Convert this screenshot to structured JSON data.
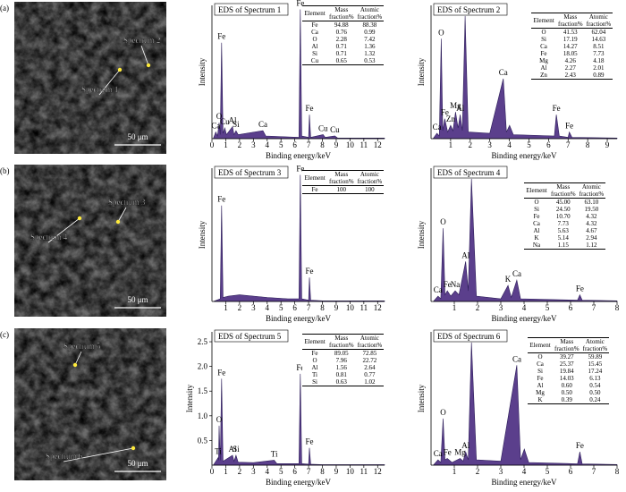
{
  "images": [
    {
      "label": "(a)",
      "markers": [
        "Spectrum 2",
        "Spectrum 1"
      ],
      "scale": "50 μm"
    },
    {
      "label": "(b)",
      "markers": [
        "Spectrum 3",
        "Spectrum 4"
      ],
      "scale": "50 μm"
    },
    {
      "label": "(c)",
      "markers": [
        "Spectrum 5",
        "Spectrum 6"
      ],
      "scale": "50 μm"
    }
  ],
  "chart_data": [
    {
      "type": "line",
      "title": "EDS of Spectrum 1",
      "x_label": "Binding energy/keV",
      "y_label": "Intensity",
      "color": "#5b3f8c",
      "xlim": [
        0,
        12.5
      ],
      "xticks": [
        0,
        1,
        2,
        3,
        4,
        5,
        6,
        7,
        8,
        9,
        10,
        11,
        12
      ],
      "ylim": [
        0,
        100
      ],
      "x": [
        0.1,
        0.28,
        0.4,
        0.52,
        0.6,
        0.7,
        0.8,
        0.93,
        1.05,
        1.49,
        1.6,
        1.74,
        1.9,
        2.5,
        3.69,
        3.9,
        6.3,
        6.4,
        6.5,
        7.0,
        7.06,
        7.15,
        8.05,
        8.2,
        8.9,
        9.1,
        12.5
      ],
      "values": [
        0,
        5,
        2,
        12,
        3,
        72,
        4,
        8,
        3,
        9,
        3,
        6,
        3,
        4,
        6,
        2,
        1,
        97,
        2,
        1,
        18,
        1,
        3,
        1,
        2,
        0.5,
        0.5
      ],
      "peak_labels": [
        null,
        "Ca",
        null,
        "O",
        null,
        "Fe",
        null,
        "Cu",
        null,
        "Al",
        null,
        "Si",
        null,
        null,
        "Ca",
        null,
        null,
        "Fe",
        null,
        null,
        "Fe",
        null,
        "Cu",
        null,
        "Cu",
        null,
        null
      ],
      "table": {
        "columns": [
          "Element",
          "Mass fraction%",
          "Atomic fraction%"
        ],
        "rows": [
          [
            "Fe",
            "94.88",
            "88.38"
          ],
          [
            "Ca",
            "0.76",
            "0.99"
          ],
          [
            "O",
            "2.28",
            "7.42"
          ],
          [
            "Al",
            "0.71",
            "1.36"
          ],
          [
            "Si",
            "0.71",
            "1.32"
          ],
          [
            "Cu",
            "0.65",
            "0.53"
          ]
        ]
      }
    },
    {
      "type": "line",
      "title": "EDS of Spectrum 2",
      "x_label": "Binding energy/keV",
      "y_label": "Intensity",
      "color": "#5b3f8c",
      "xlim": [
        0,
        9.5
      ],
      "xticks": [
        1,
        2,
        3,
        4,
        5,
        6,
        7,
        8,
        9
      ],
      "ylim": [
        0,
        100
      ],
      "x": [
        0.1,
        0.3,
        0.42,
        0.52,
        0.6,
        0.7,
        0.85,
        1.0,
        1.12,
        1.25,
        1.38,
        1.49,
        1.6,
        1.74,
        1.9,
        3.0,
        3.69,
        3.85,
        4.01,
        4.2,
        6.3,
        6.4,
        6.55,
        7.0,
        7.06,
        7.2,
        9.5
      ],
      "values": [
        0,
        4,
        2,
        75,
        6,
        15,
        5,
        10,
        6,
        20,
        8,
        18,
        6,
        92,
        5,
        4,
        45,
        5,
        10,
        3,
        2,
        18,
        2,
        1,
        5,
        1,
        0.5
      ],
      "peak_labels": [
        null,
        "Ca",
        null,
        "O",
        null,
        "Fe",
        null,
        "Zn",
        null,
        "Mg",
        null,
        "Al",
        null,
        "Si",
        null,
        null,
        "Ca",
        null,
        null,
        null,
        null,
        "Fe",
        null,
        null,
        "Fe",
        null,
        null
      ],
      "table": {
        "columns": [
          "Element",
          "Mass fraction%",
          "Atomic fraction%"
        ],
        "rows": [
          [
            "O",
            "41.53",
            "62.04"
          ],
          [
            "Si",
            "17.19",
            "14.63"
          ],
          [
            "Ca",
            "14.27",
            "8.51"
          ],
          [
            "Fe",
            "18.05",
            "7.73"
          ],
          [
            "Mg",
            "4.26",
            "4.18"
          ],
          [
            "Al",
            "2.27",
            "2.01"
          ],
          [
            "Zn",
            "2.43",
            "0.89"
          ]
        ]
      }
    },
    {
      "type": "line",
      "title": "EDS of Spectrum 3",
      "x_label": "Binding energy/keV",
      "y_label": "Intensity",
      "color": "#5b3f8c",
      "xlim": [
        0,
        12.5
      ],
      "xticks": [
        1,
        2,
        3,
        4,
        5,
        6,
        7,
        8,
        9,
        10,
        11,
        12
      ],
      "ylim": [
        0,
        100
      ],
      "x": [
        0.1,
        0.6,
        0.7,
        0.8,
        1.2,
        2.0,
        3.0,
        4.0,
        5.5,
        6.3,
        6.4,
        6.5,
        7.0,
        7.06,
        7.15,
        8.0,
        12.5
      ],
      "values": [
        0,
        2,
        72,
        3,
        4,
        5,
        4,
        3,
        2,
        2,
        95,
        2,
        1,
        18,
        1,
        0.5,
        0.5
      ],
      "peak_labels": [
        null,
        null,
        "Fe",
        null,
        null,
        null,
        null,
        null,
        null,
        null,
        "Fe",
        null,
        null,
        "Fe",
        null,
        null,
        null
      ],
      "table": {
        "columns": [
          "Element",
          "Mass fraction%",
          "Atomic fraction%"
        ],
        "rows": [
          [
            "Fe",
            "100",
            "100"
          ]
        ]
      }
    },
    {
      "type": "line",
      "title": "EDS of Spectrum 4",
      "x_label": "Binding energy/keV",
      "y_label": "Intensity",
      "color": "#5b3f8c",
      "xlim": [
        0,
        8
      ],
      "xticks": [
        1,
        2,
        3,
        4,
        5,
        6,
        7,
        8
      ],
      "ylim": [
        0,
        100
      ],
      "x": [
        0.1,
        0.3,
        0.42,
        0.52,
        0.6,
        0.7,
        0.85,
        1.04,
        1.2,
        1.49,
        1.6,
        1.74,
        1.95,
        3.0,
        3.31,
        3.45,
        3.69,
        3.85,
        6.3,
        6.4,
        6.5,
        8
      ],
      "values": [
        0,
        4,
        2,
        55,
        5,
        8,
        4,
        8,
        5,
        30,
        8,
        92,
        4,
        2,
        12,
        3,
        16,
        2,
        1,
        5,
        1,
        0.5
      ],
      "peak_labels": [
        null,
        "Ca",
        null,
        "O",
        null,
        "Fe",
        null,
        "Na",
        null,
        "Al",
        null,
        "Si",
        null,
        null,
        "K",
        null,
        "Ca",
        null,
        null,
        "Fe",
        null,
        null
      ],
      "table": {
        "columns": [
          "Element",
          "Mass fraction%",
          "Atomic fraction%"
        ],
        "rows": [
          [
            "O",
            "45.00",
            "63.10"
          ],
          [
            "Si",
            "24.50",
            "19.50"
          ],
          [
            "Fe",
            "10.70",
            "4.32"
          ],
          [
            "Ca",
            "7.73",
            "4.32"
          ],
          [
            "Al",
            "5.63",
            "4.67"
          ],
          [
            "K",
            "5.14",
            "2.94"
          ],
          [
            "Na",
            "1.15",
            "1.12"
          ]
        ]
      }
    },
    {
      "type": "line",
      "title": "EDS of Spectrum 5",
      "x_label": "Binding energy/keV",
      "y_label": "Intensity",
      "color": "#5b3f8c",
      "xlim": [
        0,
        12.5
      ],
      "xticks": [
        0,
        1,
        2,
        3,
        4,
        5,
        6,
        7,
        8,
        9,
        10,
        11,
        12
      ],
      "ylim": [
        0,
        2.7
      ],
      "yticks": [
        0.5,
        {
          "value": 1,
          "label": "1.0"
        },
        1.5,
        {
          "value": 2,
          "label": "2.0"
        },
        2.5
      ],
      "x": [
        0.1,
        0.45,
        0.48,
        0.52,
        0.6,
        0.7,
        0.8,
        1.49,
        1.6,
        1.74,
        1.9,
        3.0,
        4.51,
        4.7,
        6.3,
        6.4,
        6.5,
        7.0,
        7.06,
        7.15,
        8.0,
        12.5
      ],
      "values": [
        0,
        0.15,
        0.1,
        0.8,
        0.1,
        1.75,
        0.08,
        0.2,
        0.08,
        0.2,
        0.06,
        0.05,
        0.1,
        0.03,
        0.03,
        1.85,
        0.03,
        0.02,
        0.35,
        0.02,
        0.01,
        0.01
      ],
      "peak_labels": [
        null,
        "Ti",
        null,
        "O",
        null,
        "Fe",
        null,
        "Al",
        null,
        "Si",
        null,
        null,
        "Ti",
        null,
        null,
        "Fe",
        null,
        null,
        "Fe",
        null,
        null,
        null
      ],
      "table": {
        "columns": [
          "Element",
          "Mass fraction%",
          "Atomic fraction%"
        ],
        "rows": [
          [
            "Fe",
            "89.05",
            "72.85"
          ],
          [
            "O",
            "7.96",
            "22.72"
          ],
          [
            "Al",
            "1.56",
            "2.64"
          ],
          [
            "Ti",
            "0.81",
            "0.77"
          ],
          [
            "Si",
            "0.63",
            "1.02"
          ]
        ]
      }
    },
    {
      "type": "line",
      "title": "EDS of Spectrum 6",
      "x_label": "Binding energy/keV",
      "y_label": "Intensity",
      "color": "#5b3f8c",
      "xlim": [
        0,
        8
      ],
      "xticks": [
        1,
        2,
        3,
        4,
        5,
        6,
        7,
        8
      ],
      "ylim": [
        0,
        100
      ],
      "x": [
        0.1,
        0.3,
        0.42,
        0.52,
        0.6,
        0.7,
        0.9,
        1.25,
        1.38,
        1.49,
        1.6,
        1.74,
        1.95,
        3.0,
        3.69,
        3.85,
        4.01,
        4.2,
        6.3,
        6.4,
        6.5,
        8
      ],
      "values": [
        0,
        4,
        2,
        35,
        4,
        5,
        2,
        5,
        3,
        10,
        4,
        92,
        4,
        3,
        75,
        4,
        12,
        2,
        1,
        10,
        1,
        0.5
      ],
      "peak_labels": [
        null,
        "Ca",
        null,
        "O",
        null,
        "Fe",
        null,
        "Mg",
        null,
        "Al",
        null,
        "Si",
        null,
        null,
        "Ca",
        null,
        null,
        null,
        null,
        "Fe",
        null,
        null
      ],
      "table": {
        "columns": [
          "Element",
          "Mass fraction%",
          "Atomic fraction%"
        ],
        "rows": [
          [
            "O",
            "39.27",
            "59.89"
          ],
          [
            "Ca",
            "25.37",
            "15.45"
          ],
          [
            "Si",
            "19.84",
            "17.24"
          ],
          [
            "Fe",
            "14.03",
            "6.13"
          ],
          [
            "Al",
            "0.60",
            "0.54"
          ],
          [
            "Mg",
            "0.50",
            "0.50"
          ],
          [
            "K",
            "0.39",
            "0.24"
          ]
        ]
      }
    }
  ]
}
